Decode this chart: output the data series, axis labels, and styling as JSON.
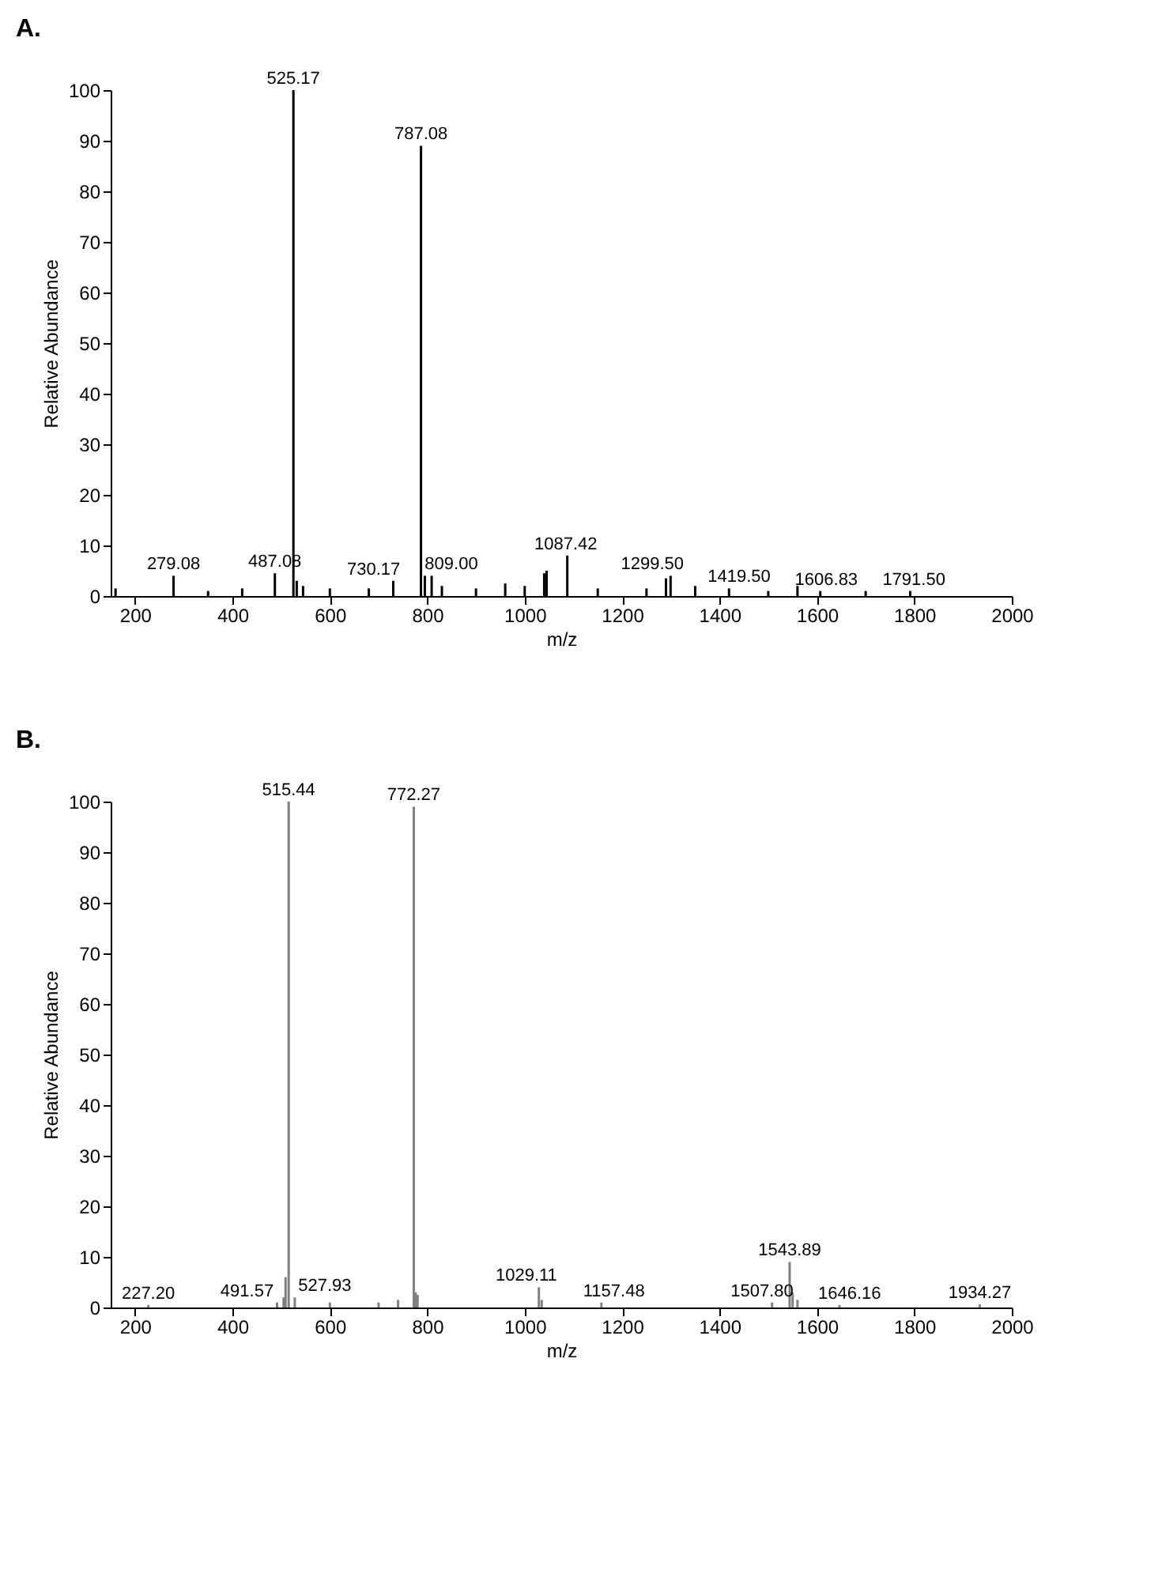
{
  "chart_data": [
    {
      "type": "bar",
      "title": "A.",
      "xlabel": "m/z",
      "ylabel": "Relative Abundance",
      "xlim": [
        150,
        2000
      ],
      "ylim": [
        0,
        100
      ],
      "xticks": [
        200,
        400,
        600,
        800,
        1000,
        1200,
        1400,
        1600,
        1800,
        2000
      ],
      "yticks": [
        0,
        10,
        20,
        30,
        40,
        50,
        60,
        70,
        80,
        90,
        100
      ],
      "series": [
        {
          "color": "#000000",
          "x": [
            160,
            279.08,
            350,
            420,
            487.08,
            525.17,
            532,
            545,
            600,
            680,
            730.17,
            787.08,
            795,
            809.0,
            830,
            900,
            960,
            1000,
            1040,
            1045,
            1087.42,
            1150,
            1250,
            1290,
            1299.5,
            1350,
            1419.5,
            1500,
            1560,
            1606.83,
            1700,
            1791.5
          ],
          "values": [
            1.5,
            4,
            1,
            1.5,
            4.5,
            100,
            3,
            2,
            1.5,
            1.5,
            3,
            89,
            4,
            4,
            2,
            1.5,
            2.5,
            2,
            4.5,
            5,
            8,
            1.5,
            1.5,
            3.5,
            4,
            2,
            1.5,
            1,
            2,
            1,
            1,
            1
          ]
        }
      ],
      "annotations": [
        {
          "text": "279.08",
          "x": 279.08,
          "y": 4
        },
        {
          "text": "487.08",
          "x": 487.08,
          "y": 4.5
        },
        {
          "text": "525.17",
          "x": 525.17,
          "y": 100
        },
        {
          "text": "730.17",
          "x": 730.17,
          "y": 3
        },
        {
          "text": "787.08",
          "x": 787.08,
          "y": 89
        },
        {
          "text": "809.00",
          "x": 809.0,
          "y": 4
        },
        {
          "text": "1087.42",
          "x": 1087.42,
          "y": 8
        },
        {
          "text": "1299.50",
          "x": 1299.5,
          "y": 4
        },
        {
          "text": "1419.50",
          "x": 1419.5,
          "y": 1.5
        },
        {
          "text": "1606.83",
          "x": 1606.83,
          "y": 1
        },
        {
          "text": "1791.50",
          "x": 1791.5,
          "y": 1
        }
      ]
    },
    {
      "type": "bar",
      "title": "B.",
      "xlabel": "m/z",
      "ylabel": "Relative Abundance",
      "xlim": [
        150,
        2000
      ],
      "ylim": [
        0,
        100
      ],
      "xticks": [
        200,
        400,
        600,
        800,
        1000,
        1200,
        1400,
        1600,
        1800,
        2000
      ],
      "yticks": [
        0,
        10,
        20,
        30,
        40,
        50,
        60,
        70,
        80,
        90,
        100
      ],
      "series": [
        {
          "color": "#808080",
          "x": [
            227.2,
            491.57,
            505,
            509,
            515.44,
            527.93,
            600,
            700,
            740,
            772.27,
            776,
            780,
            1029.11,
            1035,
            1157.48,
            1507.8,
            1543.89,
            1550,
            1560,
            1646.16,
            1934.27
          ],
          "values": [
            0.5,
            1,
            2,
            6,
            100,
            2,
            1,
            1,
            1.5,
            99,
            3,
            2.5,
            4,
            1.5,
            1,
            1,
            9,
            3,
            1.5,
            0.5,
            0.6
          ]
        }
      ],
      "annotations": [
        {
          "text": "227.20",
          "x": 227.2,
          "y": 0.5
        },
        {
          "text": "491.57",
          "x": 491.57,
          "y": 1
        },
        {
          "text": "515.44",
          "x": 515.44,
          "y": 100
        },
        {
          "text": "527.93",
          "x": 527.93,
          "y": 2
        },
        {
          "text": "772.27",
          "x": 772.27,
          "y": 99
        },
        {
          "text": "1029.11",
          "x": 1029.11,
          "y": 4
        },
        {
          "text": "1157.48",
          "x": 1157.48,
          "y": 1
        },
        {
          "text": "1507.80",
          "x": 1507.8,
          "y": 1
        },
        {
          "text": "1543.89",
          "x": 1543.89,
          "y": 9
        },
        {
          "text": "1646.16",
          "x": 1646.16,
          "y": 0.5
        },
        {
          "text": "1934.27",
          "x": 1934.27,
          "y": 0.6
        }
      ]
    }
  ]
}
